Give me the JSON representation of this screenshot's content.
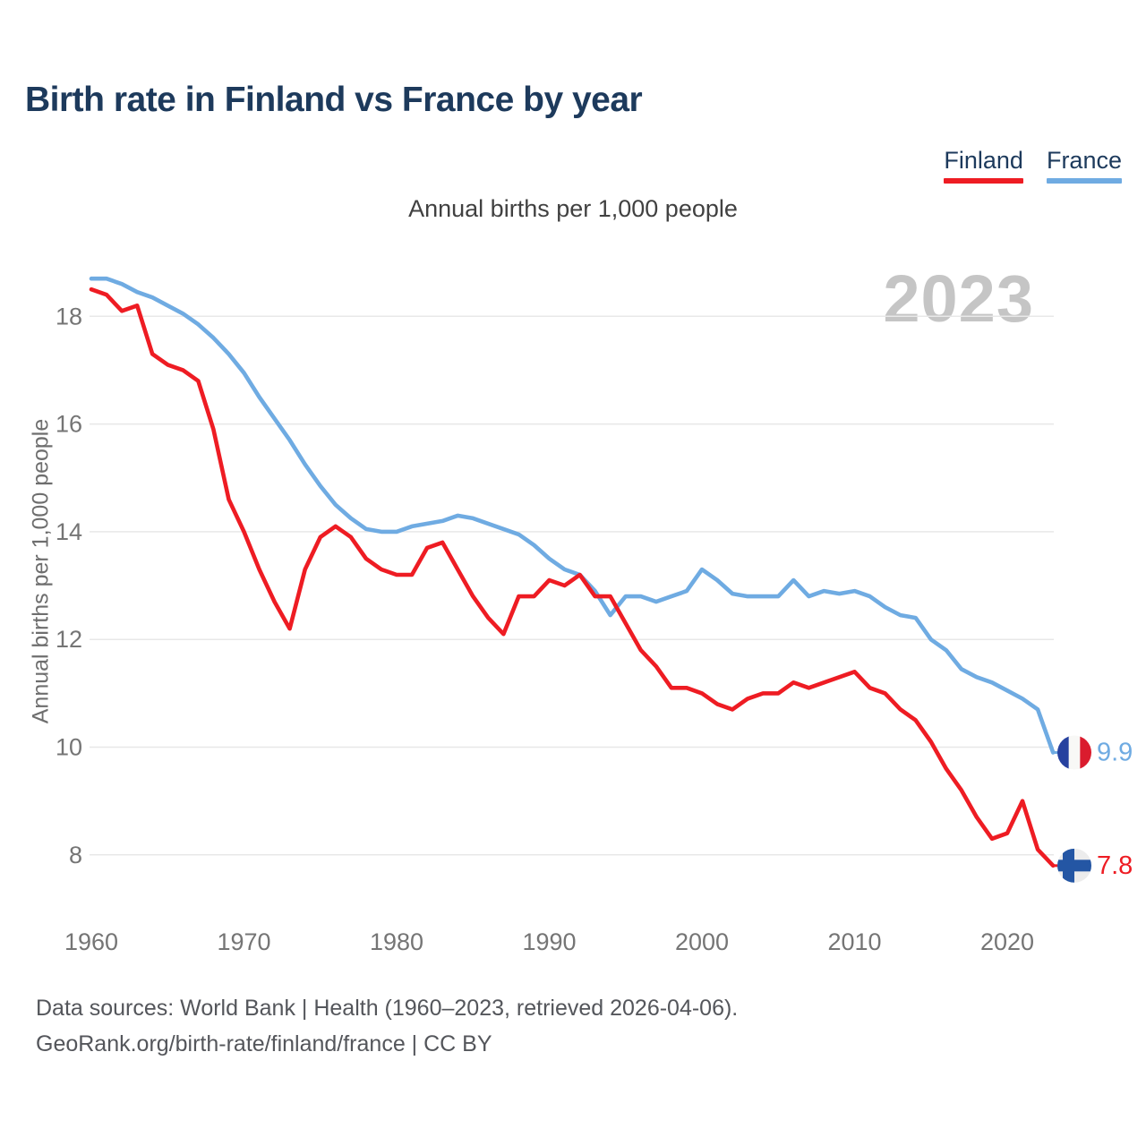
{
  "page": {
    "title": "Birth rate in Finland vs France by year",
    "subtitle": "Annual births per 1,000 people",
    "watermark": "2023",
    "footer_line1": "Data sources: World Bank | Health (1960–2023, retrieved 2026-04-06).",
    "footer_line2": "GeoRank.org/birth-rate/finland/france | CC BY"
  },
  "legend": [
    {
      "label": "Finland",
      "color": "#ee1c23"
    },
    {
      "label": "France",
      "color": "#6fabe2"
    }
  ],
  "colors": {
    "finland_line": "#ee1c23",
    "france_line": "#6fabe2",
    "title_navy": "#1d3a5c",
    "tick_gray": "#757575",
    "gridline": "#e8e8e8",
    "watermark_gray": "#c5c5c5",
    "france_flag_blue": "#26419f",
    "france_flag_red": "#da1c2e",
    "finland_flag_blue": "#2456a4",
    "finland_flag_bg": "#ececec"
  },
  "chart_data": {
    "type": "line",
    "title": "Birth rate in Finland vs France by year",
    "subtitle": "Annual births per 1,000 people",
    "xlabel": "",
    "ylabel": "Annual births per 1,000 people",
    "x_start": 1960,
    "x_end": 2023,
    "xticks": [
      1960,
      1970,
      1980,
      1990,
      2000,
      2010,
      2020
    ],
    "yticks": [
      8,
      10,
      12,
      14,
      16,
      18
    ],
    "ylim": [
      7.5,
      18.8
    ],
    "grid": "horizontal",
    "legend_position": "top-right",
    "series": [
      {
        "name": "Finland",
        "color": "#ee1c23",
        "flag": "finland",
        "end_label": "7.8",
        "values": [
          18.5,
          18.4,
          18.1,
          18.2,
          17.3,
          17.1,
          17.0,
          16.8,
          15.9,
          14.6,
          14.0,
          13.3,
          12.7,
          12.2,
          13.3,
          13.9,
          14.1,
          13.9,
          13.5,
          13.3,
          13.2,
          13.2,
          13.7,
          13.8,
          13.3,
          12.8,
          12.4,
          12.1,
          12.8,
          12.8,
          13.1,
          13.0,
          13.2,
          12.8,
          12.8,
          12.3,
          11.8,
          11.5,
          11.1,
          11.1,
          11.0,
          10.8,
          10.7,
          10.9,
          11.0,
          11.0,
          11.2,
          11.1,
          11.2,
          11.3,
          11.4,
          11.1,
          11.0,
          10.7,
          10.5,
          10.1,
          9.6,
          9.2,
          8.7,
          8.3,
          8.4,
          9.0,
          8.1,
          7.8
        ]
      },
      {
        "name": "France",
        "color": "#6fabe2",
        "flag": "france",
        "end_label": "9.9",
        "values": [
          18.7,
          18.7,
          18.6,
          18.45,
          18.35,
          18.2,
          18.05,
          17.85,
          17.6,
          17.3,
          16.95,
          16.5,
          16.1,
          15.7,
          15.25,
          14.85,
          14.5,
          14.25,
          14.05,
          14.0,
          14.0,
          14.1,
          14.15,
          14.2,
          14.3,
          14.25,
          14.15,
          14.05,
          13.95,
          13.75,
          13.5,
          13.3,
          13.2,
          12.9,
          12.45,
          12.8,
          12.8,
          12.7,
          12.8,
          12.9,
          13.3,
          13.1,
          12.85,
          12.8,
          12.8,
          12.8,
          13.1,
          12.8,
          12.9,
          12.85,
          12.9,
          12.8,
          12.6,
          12.45,
          12.4,
          12.0,
          11.8,
          11.45,
          11.3,
          11.2,
          11.05,
          10.9,
          10.7,
          9.9
        ]
      }
    ]
  }
}
